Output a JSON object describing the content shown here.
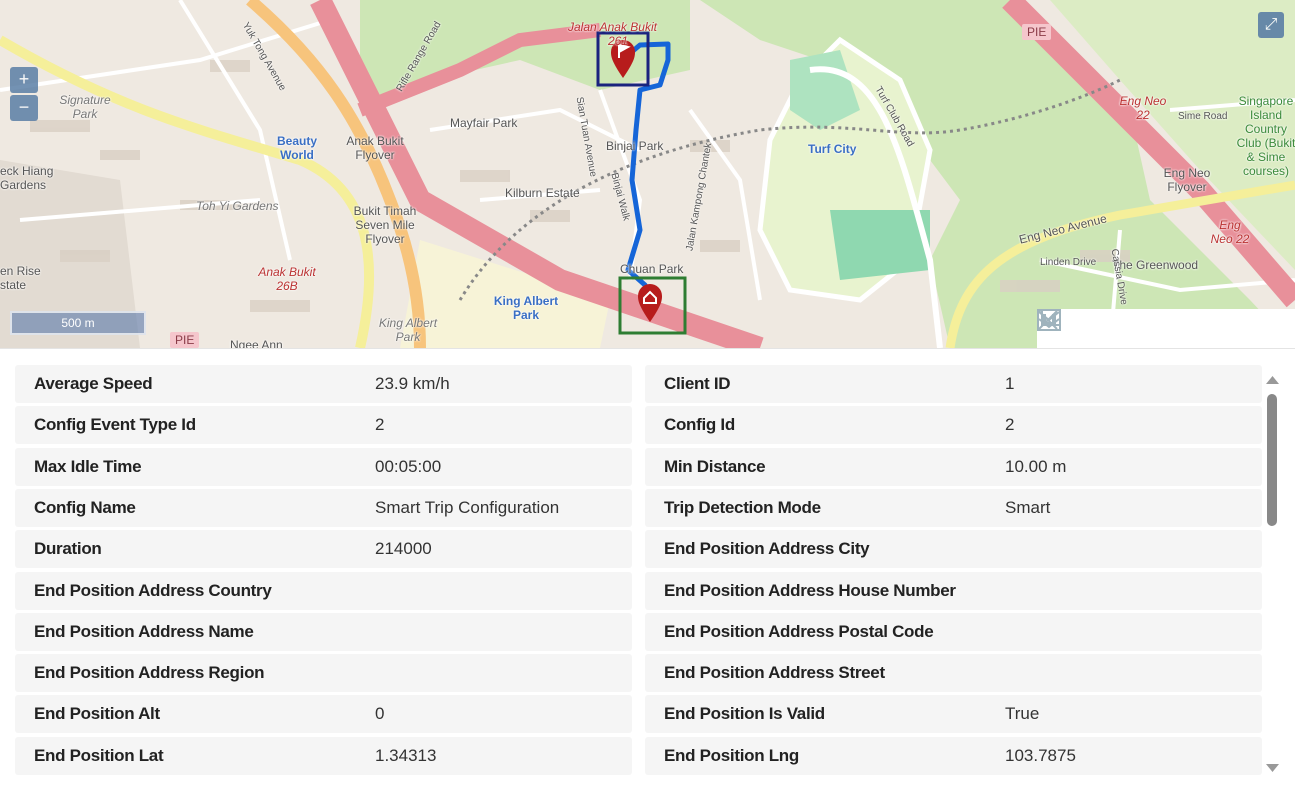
{
  "map": {
    "zoom_in": "+",
    "zoom_out": "−",
    "scale": "500 m",
    "expand_icon": "expand-arrows-icon",
    "highway_labels": [
      "PIE",
      "PIE"
    ],
    "labels": {
      "jalan_anak_bukit": "Jalan Anak Bukit",
      "n261": "261",
      "mayfair": "Mayfair Park",
      "binjai": "Binjai Park",
      "kilburn": "Kilburn Estate",
      "anak_bukit_flyover": "Anak Bukit Flyover",
      "bukit_timah": "Bukit Timah Seven Mile Flyover",
      "beauty_world": "Beauty World",
      "signature": "Signature Park",
      "toh_yi": "Toh Yi Gardens",
      "check_hiang": "eck Hiang Gardens",
      "en_rise": "en Rise state",
      "anak_bukit_26b": "Anak Bukit 26B",
      "king_albert": "King Albert Park",
      "king_albert_2": "King Albert Park",
      "turf_city": "Turf City",
      "turf_club_road": "Turf Club Road",
      "eng_neo_22": "Eng Neo 22",
      "eng_neo_flyover": "Eng Neo Flyover",
      "eng_neo_avenue": "Eng Neo Avenue",
      "eng_neo_22b": "Eng Neo 22",
      "sime_road": "Sime Road",
      "singapore_island": "Singapore Island Country Club (Bukit & Sime courses)",
      "the_greenwood": "The Greenwood",
      "linden": "Linden Drive",
      "cassia": "Cassia Drive",
      "chuan": "Chuan Park",
      "sian_tuan": "Sian Tuan Avenue",
      "binjai_walk": "Binjai Walk",
      "jalan_kampong": "Jalan Kampong Chantek",
      "yuk_tong": "Yuk Tong Avenue",
      "rifle_range": "Rifle Range Road",
      "ngee_ann": "Ngee Ann"
    },
    "start_marker_icon": "flag-pin-icon",
    "end_marker_icon": "home-pin-icon",
    "route_color": "#1565d8",
    "start_box_color": "#1a237e",
    "end_box_color": "#2e7d32"
  },
  "toolbar": {
    "icons": [
      "collapse-down-icon",
      "dock-left-icon",
      "dock-right-icon",
      "restore-window-icon",
      "close-icon"
    ]
  },
  "details": {
    "left": [
      {
        "label": "Average Speed",
        "value": "23.9 km/h"
      },
      {
        "label": "Config Event Type Id",
        "value": "2"
      },
      {
        "label": "Max Idle Time",
        "value": "00:05:00"
      },
      {
        "label": "Config Name",
        "value": "Smart Trip Configuration"
      },
      {
        "label": "Duration",
        "value": "214000"
      },
      {
        "label": "End Position Address Country",
        "value": ""
      },
      {
        "label": "End Position Address Name",
        "value": ""
      },
      {
        "label": "End Position Address Region",
        "value": ""
      },
      {
        "label": "End Position Alt",
        "value": "0"
      },
      {
        "label": "End Position Lat",
        "value": "1.34313"
      }
    ],
    "right": [
      {
        "label": "Client ID",
        "value": "1"
      },
      {
        "label": "Config Id",
        "value": "2"
      },
      {
        "label": "Min Distance",
        "value": "10.00 m"
      },
      {
        "label": "Trip Detection Mode",
        "value": "Smart"
      },
      {
        "label": "End Position Address City",
        "value": ""
      },
      {
        "label": "End Position Address House Number",
        "value": ""
      },
      {
        "label": "End Position Address Postal Code",
        "value": ""
      },
      {
        "label": "End Position Address Street",
        "value": ""
      },
      {
        "label": "End Position Is Valid",
        "value": "True"
      },
      {
        "label": "End Position Lng",
        "value": "103.7875"
      }
    ]
  }
}
